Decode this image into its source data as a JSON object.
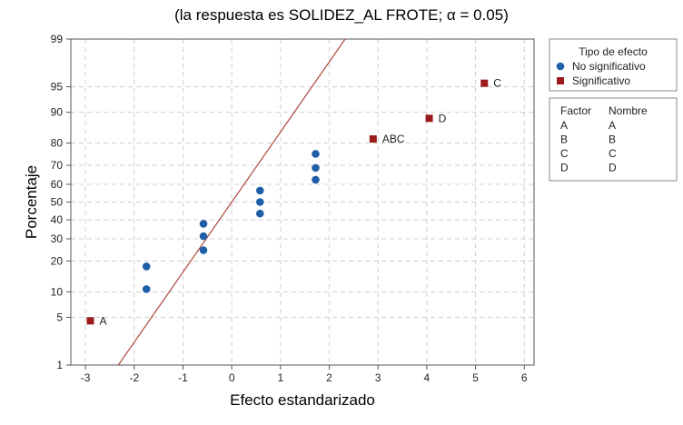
{
  "chart_data": {
    "type": "scatter",
    "title": "(la respuesta es SOLIDEZ_AL FROTE; α = 0.05)",
    "xlabel": "Efecto estandarizado",
    "ylabel": "Porcentaje",
    "xlim": [
      -3.3,
      6.2
    ],
    "x_ticks": [
      -3,
      -2,
      -1,
      0,
      1,
      2,
      3,
      4,
      5,
      6
    ],
    "y_scale": "normal-probability",
    "ylim": [
      1,
      99
    ],
    "y_ticks": [
      1,
      5,
      10,
      20,
      30,
      40,
      50,
      60,
      70,
      80,
      90,
      95,
      99
    ],
    "grid": true,
    "reference_line": {
      "mean": 0,
      "sd": 1.0,
      "color": "#b0473e"
    },
    "series": [
      {
        "name": "No significativo",
        "color": "#1f5fa8",
        "marker": "circle",
        "points": [
          {
            "x": -1.75,
            "y": 10.7
          },
          {
            "x": -1.75,
            "y": 17.9
          },
          {
            "x": -0.58,
            "y": 24.6
          },
          {
            "x": -0.58,
            "y": 31.3
          },
          {
            "x": -0.58,
            "y": 37.8
          },
          {
            "x": 0.58,
            "y": 43.5
          },
          {
            "x": 0.58,
            "y": 50.0
          },
          {
            "x": 0.58,
            "y": 56.5
          },
          {
            "x": 1.72,
            "y": 62.5
          },
          {
            "x": 1.72,
            "y": 68.7
          },
          {
            "x": 1.72,
            "y": 75.4
          }
        ]
      },
      {
        "name": "Significativo",
        "color": "#9b1b1b",
        "marker": "square",
        "points": [
          {
            "x": -2.9,
            "y": 4.5,
            "label": "A"
          },
          {
            "x": 2.9,
            "y": 81.6,
            "label": "ABC"
          },
          {
            "x": 4.05,
            "y": 88.4,
            "label": "D"
          },
          {
            "x": 5.18,
            "y": 95.5,
            "label": "C"
          }
        ]
      }
    ],
    "legend": {
      "placement": "right",
      "title": "Tipo de efecto",
      "entries": [
        "No significativo",
        "Significativo"
      ]
    },
    "factor_table": {
      "headers": [
        "Factor",
        "Nombre"
      ],
      "rows": [
        [
          "A",
          "A"
        ],
        [
          "B",
          "B"
        ],
        [
          "C",
          "C"
        ],
        [
          "D",
          "D"
        ]
      ]
    }
  }
}
